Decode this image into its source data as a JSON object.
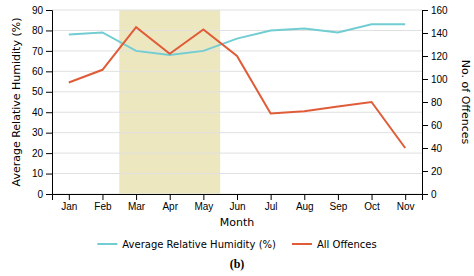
{
  "chart_data": {
    "type": "line",
    "categories": [
      "Jan",
      "Feb",
      "Mar",
      "Apr",
      "May",
      "Jun",
      "Jul",
      "Aug",
      "Sep",
      "Oct",
      "Nov"
    ],
    "series": [
      {
        "name": "Average Relative Humidity (%)",
        "color": "#72cdd2",
        "axis": "y",
        "values": [
          78,
          79,
          70,
          68,
          70,
          76,
          80,
          81,
          79,
          83,
          83
        ]
      },
      {
        "name": "All Offences",
        "color": "#e05c38",
        "axis": "y2",
        "values": [
          97,
          108,
          145,
          122,
          143,
          120,
          70,
          72,
          76,
          80,
          40
        ]
      }
    ],
    "x_label": "Month",
    "y_label": "Average Relative Humidity (%)",
    "y2_label": "No. of Offences",
    "ylim": [
      0,
      90
    ],
    "yticks": [
      0,
      10,
      20,
      30,
      40,
      50,
      60,
      70,
      80,
      90
    ],
    "y2lim": [
      0,
      160
    ],
    "y2ticks": [
      0,
      20,
      40,
      60,
      80,
      100,
      120,
      140,
      160
    ],
    "shaded": {
      "from": "Mar",
      "to": "May",
      "color": "#ede7c0"
    },
    "grid": true,
    "legend": "bottom",
    "caption": "(b)"
  }
}
